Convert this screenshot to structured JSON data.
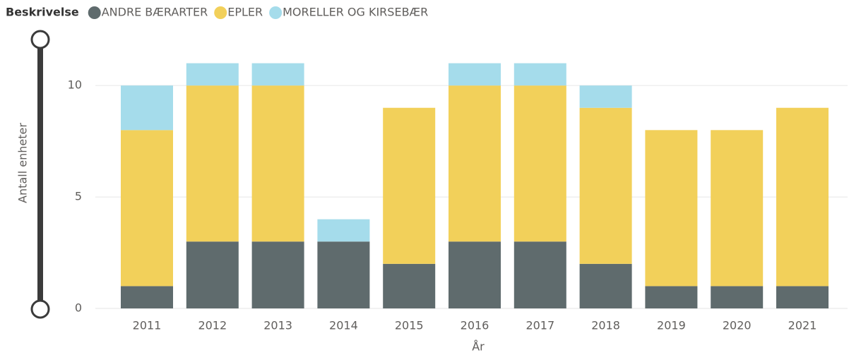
{
  "chart_data": {
    "type": "stacked_bar",
    "legend_title": "Beskrivelse",
    "x_label": "År",
    "y_label": "Antall enheter",
    "categories": [
      "2011",
      "2012",
      "2013",
      "2014",
      "2015",
      "2016",
      "2017",
      "2018",
      "2019",
      "2020",
      "2021"
    ],
    "series": [
      {
        "name": "ANDRE BÆRARTER",
        "color": "#5F6B6D",
        "values": [
          1,
          3,
          3,
          3,
          2,
          3,
          3,
          2,
          1,
          1,
          1
        ]
      },
      {
        "name": "EPLER",
        "color": "#F2D05A",
        "values": [
          7,
          7,
          7,
          0,
          7,
          7,
          7,
          7,
          7,
          7,
          8
        ]
      },
      {
        "name": "MORELLER OG KIRSEBÆR",
        "color": "#A5DCEB",
        "values": [
          2,
          1,
          1,
          1,
          0,
          1,
          1,
          1,
          0,
          0,
          0
        ]
      }
    ],
    "ylim": [
      0,
      12
    ],
    "yticks": [
      0,
      5,
      10
    ],
    "grid": true,
    "legend_position": "top-left"
  }
}
